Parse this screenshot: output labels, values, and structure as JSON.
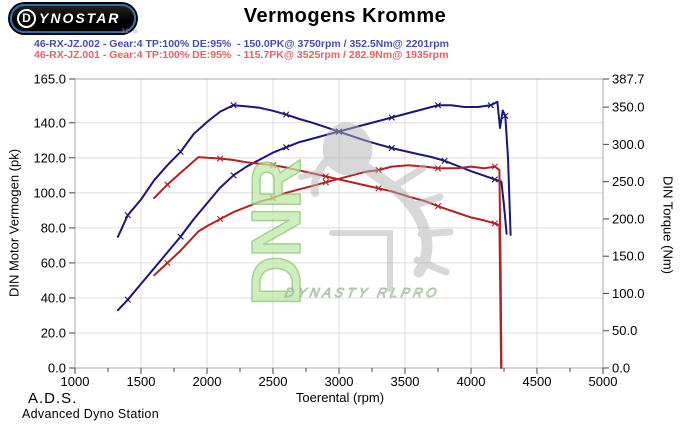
{
  "header": {
    "logo_first_letter": "D",
    "logo_rest": "YNOSTAR",
    "logo_subtext": "..32 m",
    "title": "Vermogens Kromme"
  },
  "legend": [
    {
      "label": "46-RX-JZ.002 - Gear:4 TP:100% DE:95%  - 150.0PK@ 3750rpm / 352.5Nm@ 2201rpm",
      "color": "#4a4ab8"
    },
    {
      "label": "46-RX-JZ.001 - Gear:4 TP:100% DE:95%  - 115.7PK@ 3525rpm / 282.9Nm@ 1935rpm",
      "color": "#e06464"
    }
  ],
  "watermark": {
    "letters": "DNR",
    "subtext": "DYNASTY RLPRO",
    "green": "#bfe9a8",
    "gray": "#b2b2b2"
  },
  "footer": {
    "abbr": "A.D.S.",
    "name": "Advanced Dyno Station"
  },
  "chart_data": {
    "type": "line",
    "title": "Vermogens Kromme",
    "xlabel": "Toerental (rpm)",
    "ylabel_left": "DIN Motor Vermogen (pk)",
    "ylabel_right": "DIN Torque (Nm)",
    "xlim": [
      1000,
      5000
    ],
    "ylim_left": [
      0,
      165
    ],
    "ylim_right": [
      0,
      387.7
    ],
    "grid": true,
    "legend_position": "top-left",
    "x_ticks": [
      1000,
      1500,
      2000,
      2500,
      3000,
      3500,
      4000,
      4500,
      5000
    ],
    "x_minor_step": 250,
    "y_ticks_left": [
      "165.0",
      "140.0",
      "120.0",
      "100.0",
      "80.0",
      "60.0",
      "40.0",
      "20.0",
      "0.0"
    ],
    "y_ticks_right": [
      "387.7",
      "350.0",
      "300.0",
      "250.0",
      "200.0",
      "150.0",
      "100.0",
      "50.0",
      "0.0"
    ],
    "series": [
      {
        "name": "46-RX-JZ.002 power (pk)",
        "axis": "left",
        "color": "#181878",
        "peak_label": "150.0PK@ 3750rpm",
        "x": [
          1325,
          1400,
          1500,
          1600,
          1700,
          1800,
          1900,
          2000,
          2100,
          2201,
          2300,
          2400,
          2500,
          2600,
          2700,
          2800,
          2900,
          3000,
          3100,
          3200,
          3300,
          3400,
          3500,
          3600,
          3700,
          3750,
          3850,
          3950,
          4050,
          4150,
          4200,
          4220,
          4240,
          4260,
          4280,
          4300
        ],
        "values": [
          33,
          39,
          48,
          57,
          66,
          75,
          85,
          94,
          103,
          110,
          115,
          119,
          123,
          126,
          129,
          131,
          133,
          135,
          137,
          139,
          141,
          143,
          145,
          147,
          149,
          150,
          150,
          149,
          149,
          150,
          152,
          137,
          147,
          144,
          120,
          76
        ]
      },
      {
        "name": "46-RX-JZ.002 torque (Nm)",
        "axis": "right",
        "color": "#181878",
        "peak_label": "352.5Nm@ 2201rpm",
        "x": [
          1325,
          1400,
          1500,
          1600,
          1700,
          1800,
          1900,
          2000,
          2100,
          2201,
          2300,
          2400,
          2500,
          2600,
          2700,
          2800,
          2900,
          3000,
          3100,
          3200,
          3300,
          3400,
          3500,
          3600,
          3700,
          3800,
          3900,
          4000,
          4100,
          4180,
          4230,
          4250,
          4270
        ],
        "values": [
          176,
          205,
          226,
          252,
          272,
          290,
          314,
          330,
          344,
          352.5,
          351,
          349,
          345,
          340,
          334,
          329,
          323,
          317,
          311,
          305,
          300,
          295,
          291,
          287,
          283,
          278,
          271,
          264,
          258,
          253,
          250,
          218,
          180
        ]
      },
      {
        "name": "46-RX-JZ.001 power (pk)",
        "axis": "left",
        "color": "#b22222",
        "peak_label": "115.7PK@ 3525rpm",
        "x": [
          1600,
          1700,
          1800,
          1935,
          2000,
          2100,
          2200,
          2300,
          2400,
          2500,
          2600,
          2700,
          2800,
          2900,
          3000,
          3100,
          3200,
          3300,
          3400,
          3525,
          3650,
          3750,
          3900,
          4000,
          4100,
          4180,
          4215,
          4225,
          4230
        ],
        "values": [
          53,
          60,
          67,
          78,
          81,
          85,
          89,
          92,
          95,
          97,
          100,
          102,
          104,
          106,
          108,
          110,
          112,
          113,
          115,
          115.7,
          115,
          114,
          114,
          115,
          114,
          115,
          113,
          53,
          0
        ]
      },
      {
        "name": "46-RX-JZ.001 torque (Nm)",
        "axis": "right",
        "color": "#b22222",
        "peak_label": "282.9Nm@ 1935rpm",
        "x": [
          1600,
          1700,
          1800,
          1935,
          2000,
          2100,
          2200,
          2300,
          2400,
          2500,
          2600,
          2700,
          2800,
          2900,
          3000,
          3100,
          3200,
          3300,
          3400,
          3525,
          3650,
          3750,
          3900,
          4000,
          4100,
          4180,
          4215,
          4222,
          4228
        ],
        "values": [
          228,
          246,
          262,
          282.9,
          282,
          281,
          279,
          276,
          274,
          272,
          269,
          265,
          261,
          257,
          253,
          249,
          245,
          241,
          237,
          230,
          224,
          217,
          208,
          202,
          198,
          194,
          192,
          100,
          0
        ]
      }
    ]
  }
}
